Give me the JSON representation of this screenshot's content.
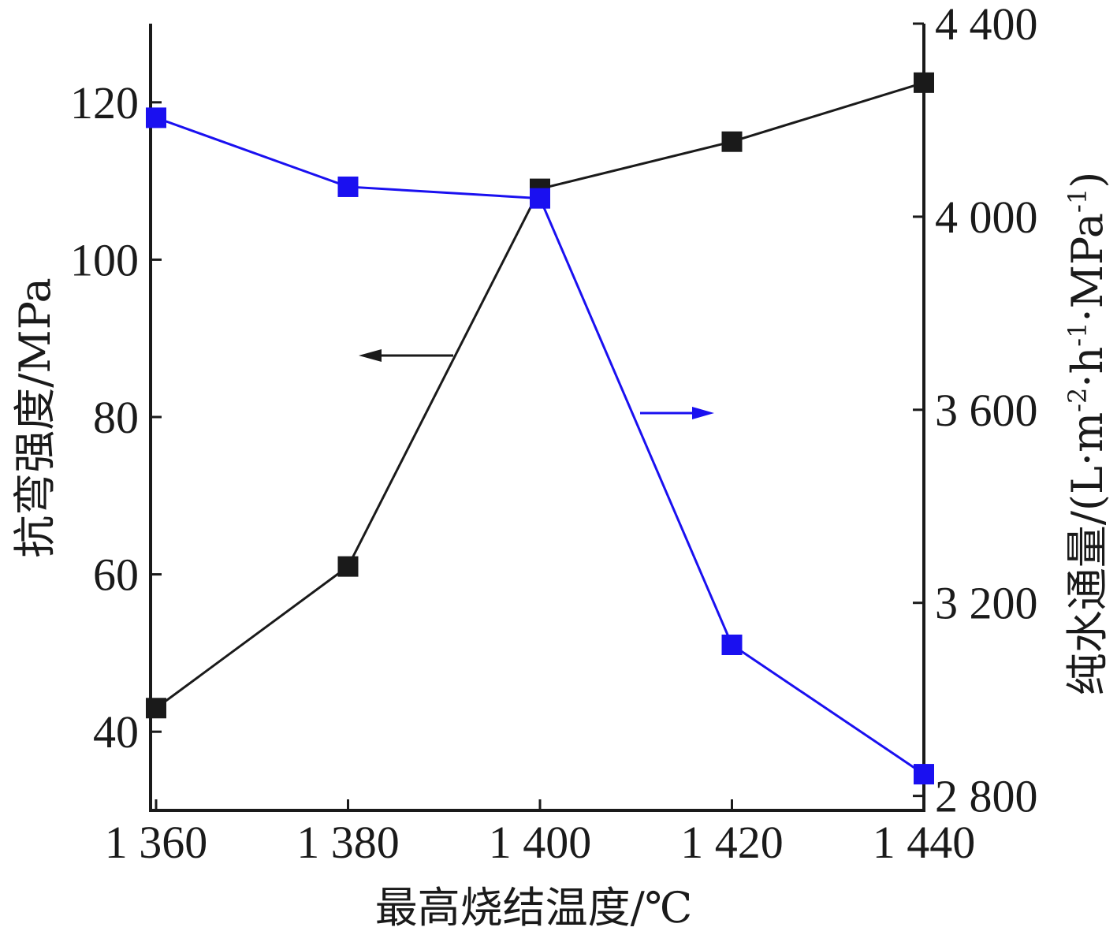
{
  "chart_data": {
    "type": "line",
    "x": [
      1360,
      1380,
      1400,
      1420,
      1440
    ],
    "x_tick_labels": [
      "1 360",
      "1 380",
      "1 400",
      "1 420",
      "1 440"
    ],
    "xlabel": "最高烧结温度/℃",
    "xlim": [
      1360,
      1440
    ],
    "ylabel_left": "抗弯强度/MPa",
    "ylim_left": [
      30,
      130
    ],
    "y_ticks_left": [
      40,
      60,
      80,
      100,
      120
    ],
    "y_tick_labels_left": [
      "40",
      "60",
      "80",
      "100",
      "120"
    ],
    "ylabel_right": "纯水通量/(L·m-2·h-1·MPa-1)",
    "ylabel_right_parts": {
      "prefix": "纯水通量/(L·m",
      "sup1": "-2",
      "mid1": "·h",
      "sup2": "-1",
      "mid2": "·MPa",
      "sup3": "-1",
      "suffix": ")"
    },
    "ylim_right": [
      2770,
      4400
    ],
    "y_ticks_right": [
      2800,
      3200,
      3600,
      4000,
      4400
    ],
    "y_tick_labels_right": [
      "2 800",
      "3 200",
      "3 600",
      "4 000",
      "4 400"
    ],
    "series": [
      {
        "axis": "left",
        "color": "#1a1a1a",
        "marker": "square",
        "values": [
          43,
          61,
          109,
          115,
          122.5
        ]
      },
      {
        "axis": "right",
        "color": "#1a10f0",
        "marker": "square",
        "values": [
          4205,
          4062,
          4038,
          3113,
          2845
        ]
      }
    ],
    "annotations": [
      {
        "type": "arrow",
        "direction": "left",
        "color": "#1a1a1a",
        "points_to": "left-axis"
      },
      {
        "type": "arrow",
        "direction": "right",
        "color": "#1a10f0",
        "points_to": "right-axis"
      }
    ],
    "grid": false,
    "legend": "none"
  }
}
